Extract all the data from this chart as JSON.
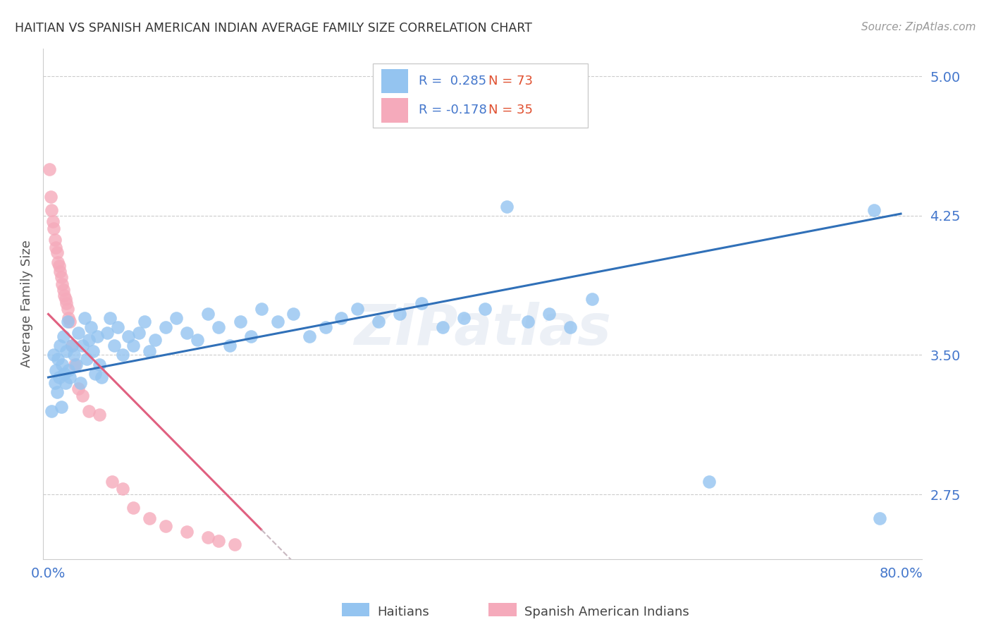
{
  "title": "HAITIAN VS SPANISH AMERICAN INDIAN AVERAGE FAMILY SIZE CORRELATION CHART",
  "source": "Source: ZipAtlas.com",
  "ylabel": "Average Family Size",
  "yticks": [
    2.75,
    3.5,
    4.25,
    5.0
  ],
  "ylim": [
    2.4,
    5.15
  ],
  "xlim": [
    -0.005,
    0.82
  ],
  "r_blue": 0.285,
  "n_blue": 73,
  "r_pink": -0.178,
  "n_pink": 35,
  "blue_color": "#94C4F0",
  "pink_color": "#F5AABB",
  "blue_line_color": "#3070B8",
  "pink_line_color": "#E06080",
  "pink_line_dash_color": "#C8B8C0",
  "watermark": "ZIPatlas",
  "legend_label_blue": "Haitians",
  "legend_label_pink": "Spanish American Indians",
  "blue_scatter_x": [
    0.003,
    0.005,
    0.006,
    0.007,
    0.008,
    0.009,
    0.01,
    0.011,
    0.012,
    0.013,
    0.014,
    0.015,
    0.016,
    0.017,
    0.018,
    0.019,
    0.02,
    0.022,
    0.024,
    0.026,
    0.028,
    0.03,
    0.032,
    0.034,
    0.036,
    0.038,
    0.04,
    0.042,
    0.044,
    0.046,
    0.048,
    0.05,
    0.055,
    0.058,
    0.062,
    0.065,
    0.07,
    0.075,
    0.08,
    0.085,
    0.09,
    0.095,
    0.1,
    0.11,
    0.12,
    0.13,
    0.14,
    0.15,
    0.16,
    0.17,
    0.18,
    0.19,
    0.2,
    0.215,
    0.23,
    0.245,
    0.26,
    0.275,
    0.29,
    0.31,
    0.33,
    0.35,
    0.37,
    0.39,
    0.41,
    0.43,
    0.45,
    0.47,
    0.49,
    0.51,
    0.62,
    0.775,
    0.78
  ],
  "blue_scatter_y": [
    3.2,
    3.5,
    3.35,
    3.42,
    3.3,
    3.48,
    3.38,
    3.55,
    3.22,
    3.45,
    3.6,
    3.4,
    3.35,
    3.52,
    3.68,
    3.42,
    3.38,
    3.55,
    3.5,
    3.45,
    3.62,
    3.35,
    3.55,
    3.7,
    3.48,
    3.58,
    3.65,
    3.52,
    3.4,
    3.6,
    3.45,
    3.38,
    3.62,
    3.7,
    3.55,
    3.65,
    3.5,
    3.6,
    3.55,
    3.62,
    3.68,
    3.52,
    3.58,
    3.65,
    3.7,
    3.62,
    3.58,
    3.72,
    3.65,
    3.55,
    3.68,
    3.6,
    3.75,
    3.68,
    3.72,
    3.6,
    3.65,
    3.7,
    3.75,
    3.68,
    3.72,
    3.78,
    3.65,
    3.7,
    3.75,
    4.3,
    3.68,
    3.72,
    3.65,
    3.8,
    2.82,
    4.28,
    2.62
  ],
  "pink_scatter_x": [
    0.001,
    0.002,
    0.003,
    0.004,
    0.005,
    0.006,
    0.007,
    0.008,
    0.009,
    0.01,
    0.011,
    0.012,
    0.013,
    0.014,
    0.015,
    0.016,
    0.017,
    0.018,
    0.019,
    0.02,
    0.022,
    0.025,
    0.028,
    0.032,
    0.038,
    0.048,
    0.06,
    0.07,
    0.08,
    0.095,
    0.11,
    0.13,
    0.15,
    0.16,
    0.175
  ],
  "pink_scatter_y": [
    4.5,
    4.35,
    4.28,
    4.22,
    4.18,
    4.12,
    4.08,
    4.05,
    4.0,
    3.98,
    3.95,
    3.92,
    3.88,
    3.85,
    3.82,
    3.8,
    3.78,
    3.75,
    3.7,
    3.68,
    3.55,
    3.45,
    3.32,
    3.28,
    3.2,
    3.18,
    2.82,
    2.78,
    2.68,
    2.62,
    2.58,
    2.55,
    2.52,
    2.5,
    2.48
  ]
}
